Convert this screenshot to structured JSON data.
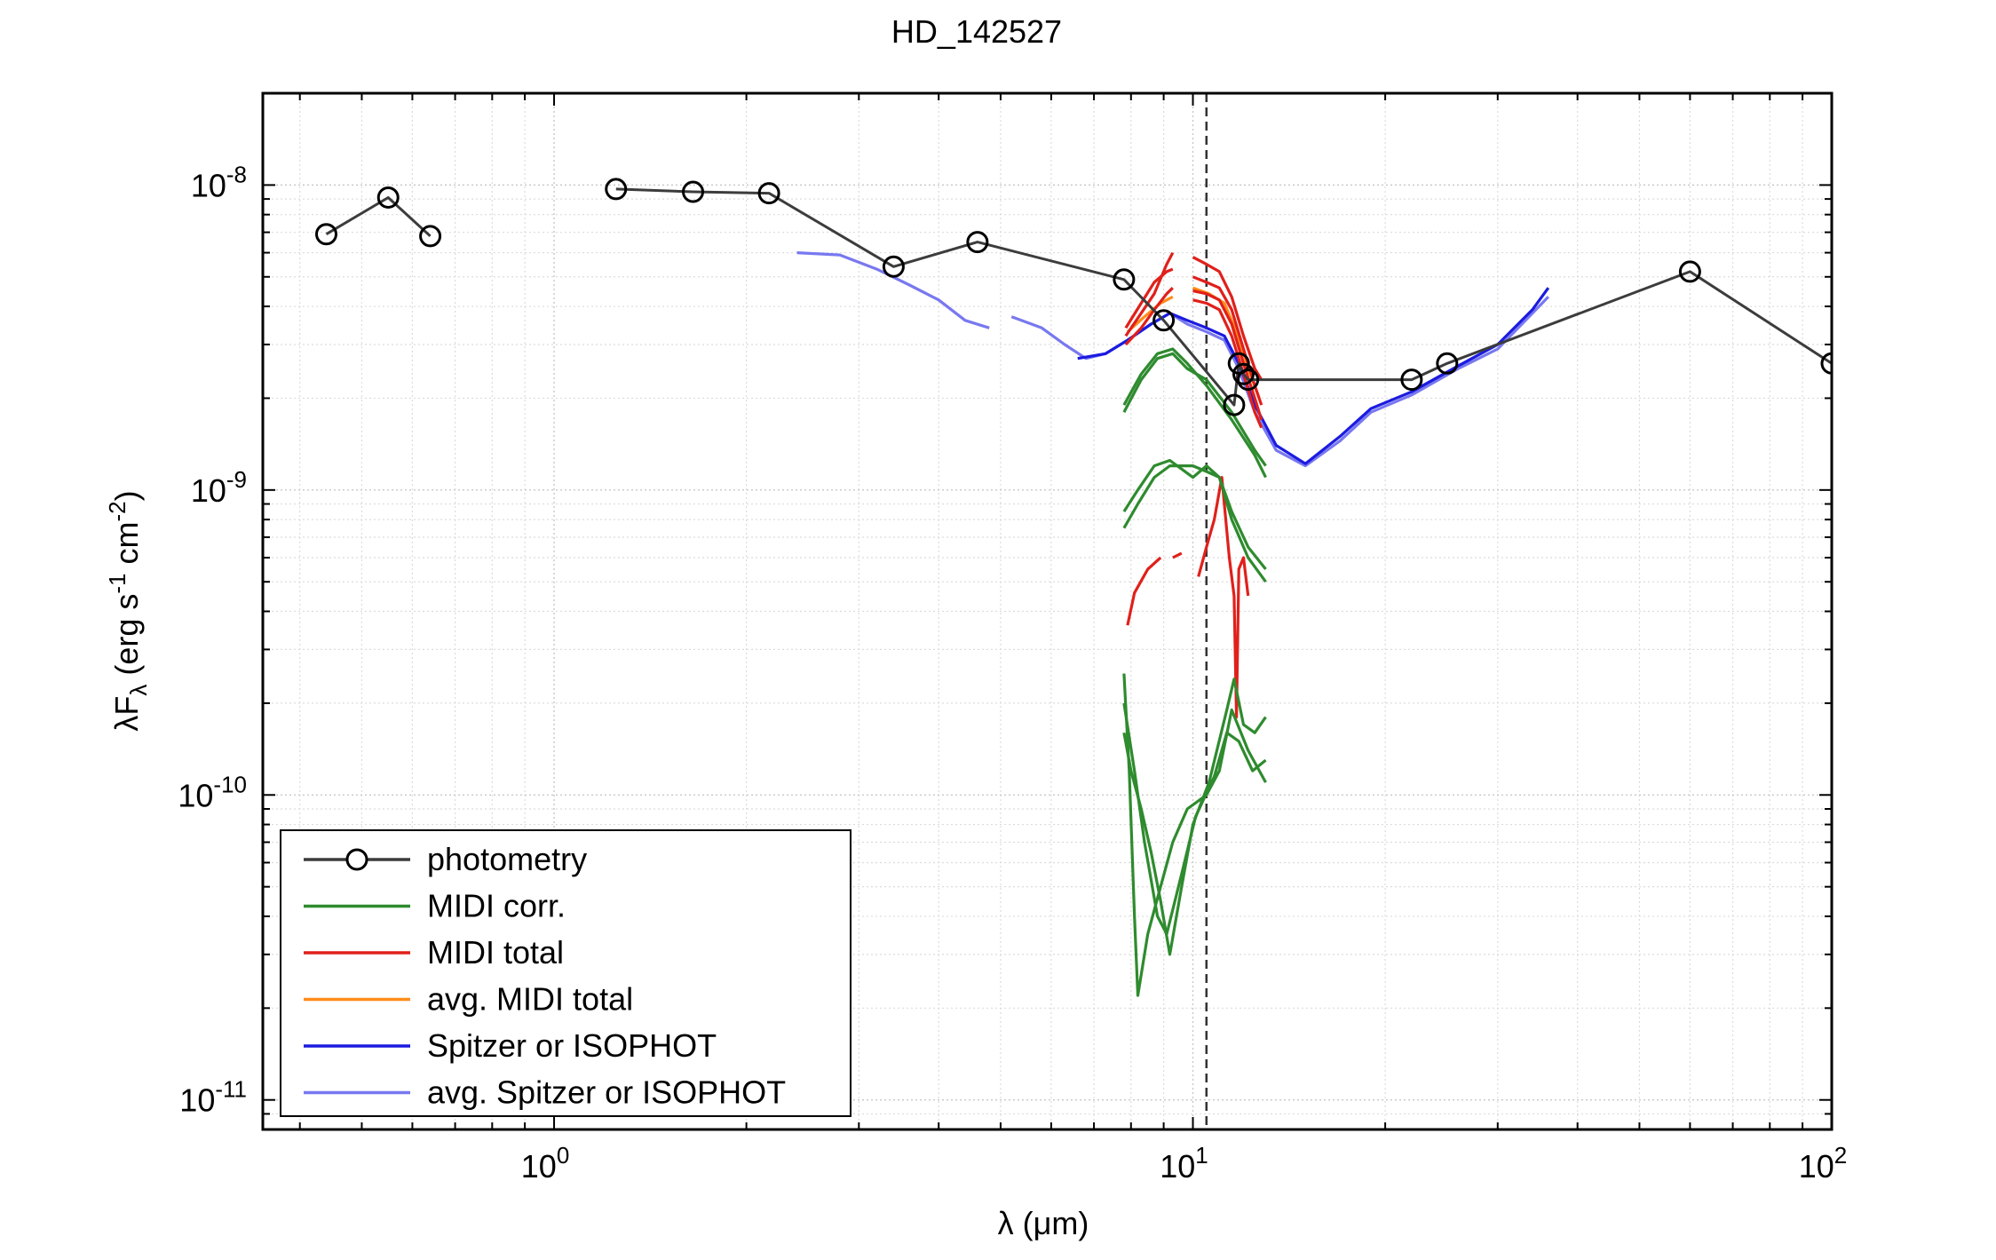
{
  "chart_data": {
    "type": "line",
    "title": "HD_142527",
    "xlabel": "λ (μm)",
    "ylabel": "λF_λ (erg s^-1 cm^-2)",
    "ylabel_parts": {
      "pre": "λF",
      "sub": "λ",
      "mid": " (erg s",
      "sup1": "-1",
      "mid2": " cm",
      "sup2": "-2",
      "end": ")"
    },
    "xscale": "log",
    "yscale": "log",
    "xlim": [
      0.35,
      100
    ],
    "ylim": [
      8e-12,
      2e-08
    ],
    "grid": true,
    "legend_position": "lower-left",
    "x_ticks": [
      {
        "value": 1,
        "base": "10",
        "exp": "0"
      },
      {
        "value": 10,
        "base": "10",
        "exp": "1"
      },
      {
        "value": 100,
        "base": "10",
        "exp": "2"
      }
    ],
    "y_ticks": [
      {
        "value": 1e-08,
        "base": "10",
        "exp": "-8"
      },
      {
        "value": 1e-09,
        "base": "10",
        "exp": "-9"
      },
      {
        "value": 1e-10,
        "base": "10",
        "exp": "-10"
      },
      {
        "value": 1e-11,
        "base": "10",
        "exp": "-11"
      }
    ],
    "vline_x": 10.5,
    "series": [
      {
        "name": "photometry",
        "color": "#3c3c3c",
        "marker": "circle",
        "segments": [
          [
            [
              0.44,
              6.9e-09
            ],
            [
              0.55,
              9.1e-09
            ],
            [
              0.64,
              6.8e-09
            ]
          ],
          [
            [
              1.25,
              9.7e-09
            ],
            [
              1.65,
              9.5e-09
            ],
            [
              2.17,
              9.4e-09
            ],
            [
              3.4,
              5.4e-09
            ],
            [
              4.6,
              6.5e-09
            ],
            [
              7.8,
              4.9e-09
            ],
            [
              9.0,
              3.6e-09
            ],
            [
              11.6,
              1.9e-09
            ],
            [
              11.8,
              2.6e-09
            ],
            [
              12.0,
              2.4e-09
            ],
            [
              12.2,
              2.3e-09
            ],
            [
              22,
              2.3e-09
            ],
            [
              25,
              2.6e-09
            ],
            [
              60,
              5.2e-09
            ],
            [
              100,
              2.6e-09
            ]
          ]
        ]
      },
      {
        "name": "MIDI corr.",
        "color": "#2e8b2e",
        "segments": [
          [
            [
              7.8,
              1.8e-09
            ],
            [
              8.3,
              2.3e-09
            ],
            [
              8.8,
              2.7e-09
            ],
            [
              9.3,
              2.8e-09
            ],
            [
              9.8,
              2.5e-09
            ],
            [
              10.5,
              2.3e-09
            ],
            [
              11.5,
              1.8e-09
            ],
            [
              12.5,
              1.35e-09
            ],
            [
              13,
              1.2e-09
            ]
          ],
          [
            [
              7.8,
              1.9e-09
            ],
            [
              8.3,
              2.4e-09
            ],
            [
              8.8,
              2.8e-09
            ],
            [
              9.3,
              2.9e-09
            ],
            [
              9.8,
              2.6e-09
            ],
            [
              10.5,
              2.2e-09
            ],
            [
              11.5,
              1.7e-09
            ],
            [
              12.5,
              1.3e-09
            ],
            [
              13,
              1.1e-09
            ]
          ],
          [
            [
              7.8,
              7.5e-10
            ],
            [
              8.2,
              9e-10
            ],
            [
              8.7,
              1.1e-09
            ],
            [
              9.2,
              1.2e-09
            ],
            [
              10,
              1.2e-09
            ],
            [
              10.5,
              1.15e-09
            ],
            [
              11,
              1.1e-09
            ],
            [
              11.5,
              8e-10
            ],
            [
              12.2,
              6e-10
            ],
            [
              13,
              5e-10
            ]
          ],
          [
            [
              7.8,
              8.5e-10
            ],
            [
              8.2,
              1e-09
            ],
            [
              8.7,
              1.2e-09
            ],
            [
              9.2,
              1.25e-09
            ],
            [
              10,
              1.1e-09
            ],
            [
              10.5,
              1.2e-09
            ],
            [
              11,
              1.1e-09
            ],
            [
              11.5,
              8.5e-10
            ],
            [
              12.2,
              6.5e-10
            ],
            [
              13,
              5.5e-10
            ]
          ],
          [
            [
              7.8,
              2.5e-10
            ],
            [
              7.95,
              1.2e-10
            ],
            [
              8.1,
              4e-11
            ],
            [
              8.2,
              2.2e-11
            ],
            [
              8.5,
              3.5e-11
            ],
            [
              8.9,
              5e-11
            ],
            [
              9.3,
              7e-11
            ],
            [
              9.8,
              9e-11
            ],
            [
              10.5,
              1e-10
            ],
            [
              11.0,
              1.2e-10
            ],
            [
              11.5,
              1.9e-10
            ],
            [
              12.2,
              1.4e-10
            ],
            [
              13,
              1.1e-10
            ]
          ],
          [
            [
              7.8,
              1.6e-10
            ],
            [
              8.0,
              1.2e-10
            ],
            [
              8.3,
              9e-11
            ],
            [
              8.6,
              6.5e-11
            ],
            [
              8.9,
              4.5e-11
            ],
            [
              9.2,
              3e-11
            ],
            [
              9.6,
              5e-11
            ],
            [
              10.0,
              8e-11
            ],
            [
              10.6,
              1.1e-10
            ],
            [
              11.3,
              1.9e-10
            ],
            [
              11.6,
              2.4e-10
            ],
            [
              12.0,
              1.7e-10
            ],
            [
              12.5,
              1.6e-10
            ],
            [
              13,
              1.8e-10
            ]
          ],
          [
            [
              7.8,
              2e-10
            ],
            [
              8.1,
              1.2e-10
            ],
            [
              8.4,
              7e-11
            ],
            [
              8.8,
              4e-11
            ],
            [
              9.1,
              3.5e-11
            ],
            [
              9.6,
              5.5e-11
            ],
            [
              10.1,
              8.5e-11
            ],
            [
              10.8,
              1.15e-10
            ],
            [
              11.3,
              1.6e-10
            ],
            [
              11.8,
              1.5e-10
            ],
            [
              12.4,
              1.2e-10
            ],
            [
              13,
              1.3e-10
            ]
          ]
        ]
      },
      {
        "name": "MIDI total",
        "color": "#e0201b",
        "segments": [
          [
            [
              7.85,
              3.2e-09
            ],
            [
              8.3,
              3.8e-09
            ],
            [
              8.7,
              4.4e-09
            ],
            [
              9.1,
              5.5e-09
            ],
            [
              9.3,
              6e-09
            ]
          ],
          [
            [
              7.85,
              3e-09
            ],
            [
              8.3,
              3.4e-09
            ],
            [
              8.7,
              3.9e-09
            ],
            [
              9.1,
              4.4e-09
            ],
            [
              9.3,
              4.6e-09
            ]
          ],
          [
            [
              7.85,
              3.4e-09
            ],
            [
              8.3,
              4.1e-09
            ],
            [
              8.7,
              4.8e-09
            ],
            [
              9.1,
              5.2e-09
            ],
            [
              9.3,
              5.3e-09
            ]
          ],
          [
            [
              10.0,
              5.8e-09
            ],
            [
              10.5,
              5.5e-09
            ],
            [
              11.0,
              5.2e-09
            ],
            [
              11.5,
              4.3e-09
            ],
            [
              12.0,
              3.2e-09
            ],
            [
              12.5,
              2.5e-09
            ],
            [
              12.8,
              2.3e-09
            ]
          ],
          [
            [
              10.0,
              5e-09
            ],
            [
              10.5,
              4.8e-09
            ],
            [
              11.0,
              4.6e-09
            ],
            [
              11.5,
              3.9e-09
            ],
            [
              12.0,
              2.9e-09
            ],
            [
              12.5,
              2.2e-09
            ],
            [
              12.8,
              1.9e-09
            ]
          ],
          [
            [
              10.0,
              4.5e-09
            ],
            [
              10.5,
              4.4e-09
            ],
            [
              11.0,
              4.2e-09
            ],
            [
              11.5,
              3.5e-09
            ],
            [
              12.0,
              2.6e-09
            ],
            [
              12.5,
              2e-09
            ],
            [
              12.8,
              1.7e-09
            ]
          ],
          [
            [
              10.0,
              4.2e-09
            ],
            [
              10.5,
              4.1e-09
            ],
            [
              11.0,
              3.9e-09
            ],
            [
              11.5,
              3.2e-09
            ],
            [
              12.0,
              2.4e-09
            ],
            [
              12.5,
              1.8e-09
            ],
            [
              12.8,
              1.6e-09
            ]
          ],
          [
            [
              7.9,
              3.6e-10
            ],
            [
              8.1,
              4.6e-10
            ],
            [
              8.5,
              5.5e-10
            ],
            [
              8.9,
              6e-10
            ]
          ],
          [
            [
              9.3,
              6e-10
            ],
            [
              9.6,
              6.2e-10
            ]
          ],
          [
            [
              10.2,
              5.2e-10
            ],
            [
              10.5,
              6.5e-10
            ],
            [
              10.8,
              8e-10
            ],
            [
              11.1,
              1.1e-09
            ],
            [
              11.4,
              6e-10
            ],
            [
              11.6,
              4.5e-10
            ],
            [
              11.7,
              1.8e-10
            ],
            [
              11.8,
              5.5e-10
            ],
            [
              12.0,
              6e-10
            ],
            [
              12.2,
              4.5e-10
            ]
          ]
        ]
      },
      {
        "name": "avg. MIDI total",
        "color": "#ff8c1a",
        "segments": [
          [
            [
              7.9,
              3.3e-09
            ],
            [
              8.4,
              3.7e-09
            ],
            [
              8.9,
              4.1e-09
            ],
            [
              9.3,
              4.3e-09
            ]
          ],
          [
            [
              10.0,
              4.6e-09
            ],
            [
              10.6,
              4.4e-09
            ],
            [
              11.2,
              4.1e-09
            ],
            [
              11.7,
              3.3e-09
            ],
            [
              12.2,
              2.5e-09
            ],
            [
              12.7,
              2e-09
            ]
          ]
        ]
      },
      {
        "name": "Spitzer or ISOPHOT",
        "color": "#1b1be0",
        "segments": [
          [
            [
              6.6,
              2.7e-09
            ],
            [
              7.3,
              2.8e-09
            ],
            [
              7.9,
              3.1e-09
            ],
            [
              8.6,
              3.5e-09
            ],
            [
              9.2,
              3.8e-09
            ],
            [
              9.8,
              3.6e-09
            ],
            [
              10.5,
              3.4e-09
            ],
            [
              11.2,
              3.2e-09
            ],
            [
              11.8,
              2.6e-09
            ],
            [
              12.5,
              1.9e-09
            ],
            [
              13.5,
              1.4e-09
            ],
            [
              15,
              1.22e-09
            ],
            [
              17,
              1.5e-09
            ],
            [
              19,
              1.85e-09
            ],
            [
              22,
              2.1e-09
            ],
            [
              26,
              2.55e-09
            ],
            [
              30,
              3e-09
            ],
            [
              34,
              3.9e-09
            ],
            [
              36,
              4.6e-09
            ]
          ]
        ]
      },
      {
        "name": "avg. Spitzer or ISOPHOT",
        "color": "#7878f0",
        "segments": [
          [
            [
              2.4,
              6e-09
            ],
            [
              2.8,
              5.9e-09
            ],
            [
              3.2,
              5.3e-09
            ],
            [
              3.6,
              4.7e-09
            ],
            [
              4.0,
              4.2e-09
            ],
            [
              4.4,
              3.6e-09
            ],
            [
              4.8,
              3.4e-09
            ]
          ],
          [
            [
              5.2,
              3.7e-09
            ],
            [
              5.8,
              3.4e-09
            ],
            [
              6.3,
              3e-09
            ],
            [
              6.8,
              2.7e-09
            ],
            [
              7.3,
              2.8e-09
            ],
            [
              7.9,
              3.1e-09
            ],
            [
              8.6,
              3.5e-09
            ],
            [
              9.2,
              3.8e-09
            ],
            [
              9.8,
              3.5e-09
            ],
            [
              10.5,
              3.3e-09
            ],
            [
              11.2,
              3.1e-09
            ],
            [
              11.8,
              2.5e-09
            ],
            [
              12.5,
              1.8e-09
            ],
            [
              13.5,
              1.35e-09
            ],
            [
              15,
              1.2e-09
            ],
            [
              17,
              1.45e-09
            ],
            [
              19,
              1.8e-09
            ],
            [
              22,
              2.05e-09
            ],
            [
              26,
              2.5e-09
            ],
            [
              30,
              2.9e-09
            ],
            [
              34,
              3.8e-09
            ],
            [
              36,
              4.3e-09
            ]
          ]
        ]
      }
    ],
    "legend": [
      {
        "label": "photometry",
        "color": "#3c3c3c",
        "marker": "circle"
      },
      {
        "label": "MIDI corr.",
        "color": "#2e8b2e"
      },
      {
        "label": "MIDI total",
        "color": "#e0201b"
      },
      {
        "label": "avg. MIDI total",
        "color": "#ff8c1a"
      },
      {
        "label": "Spitzer or ISOPHOT",
        "color": "#1b1be0"
      },
      {
        "label": "avg. Spitzer or ISOPHOT",
        "color": "#7878f0"
      }
    ]
  }
}
